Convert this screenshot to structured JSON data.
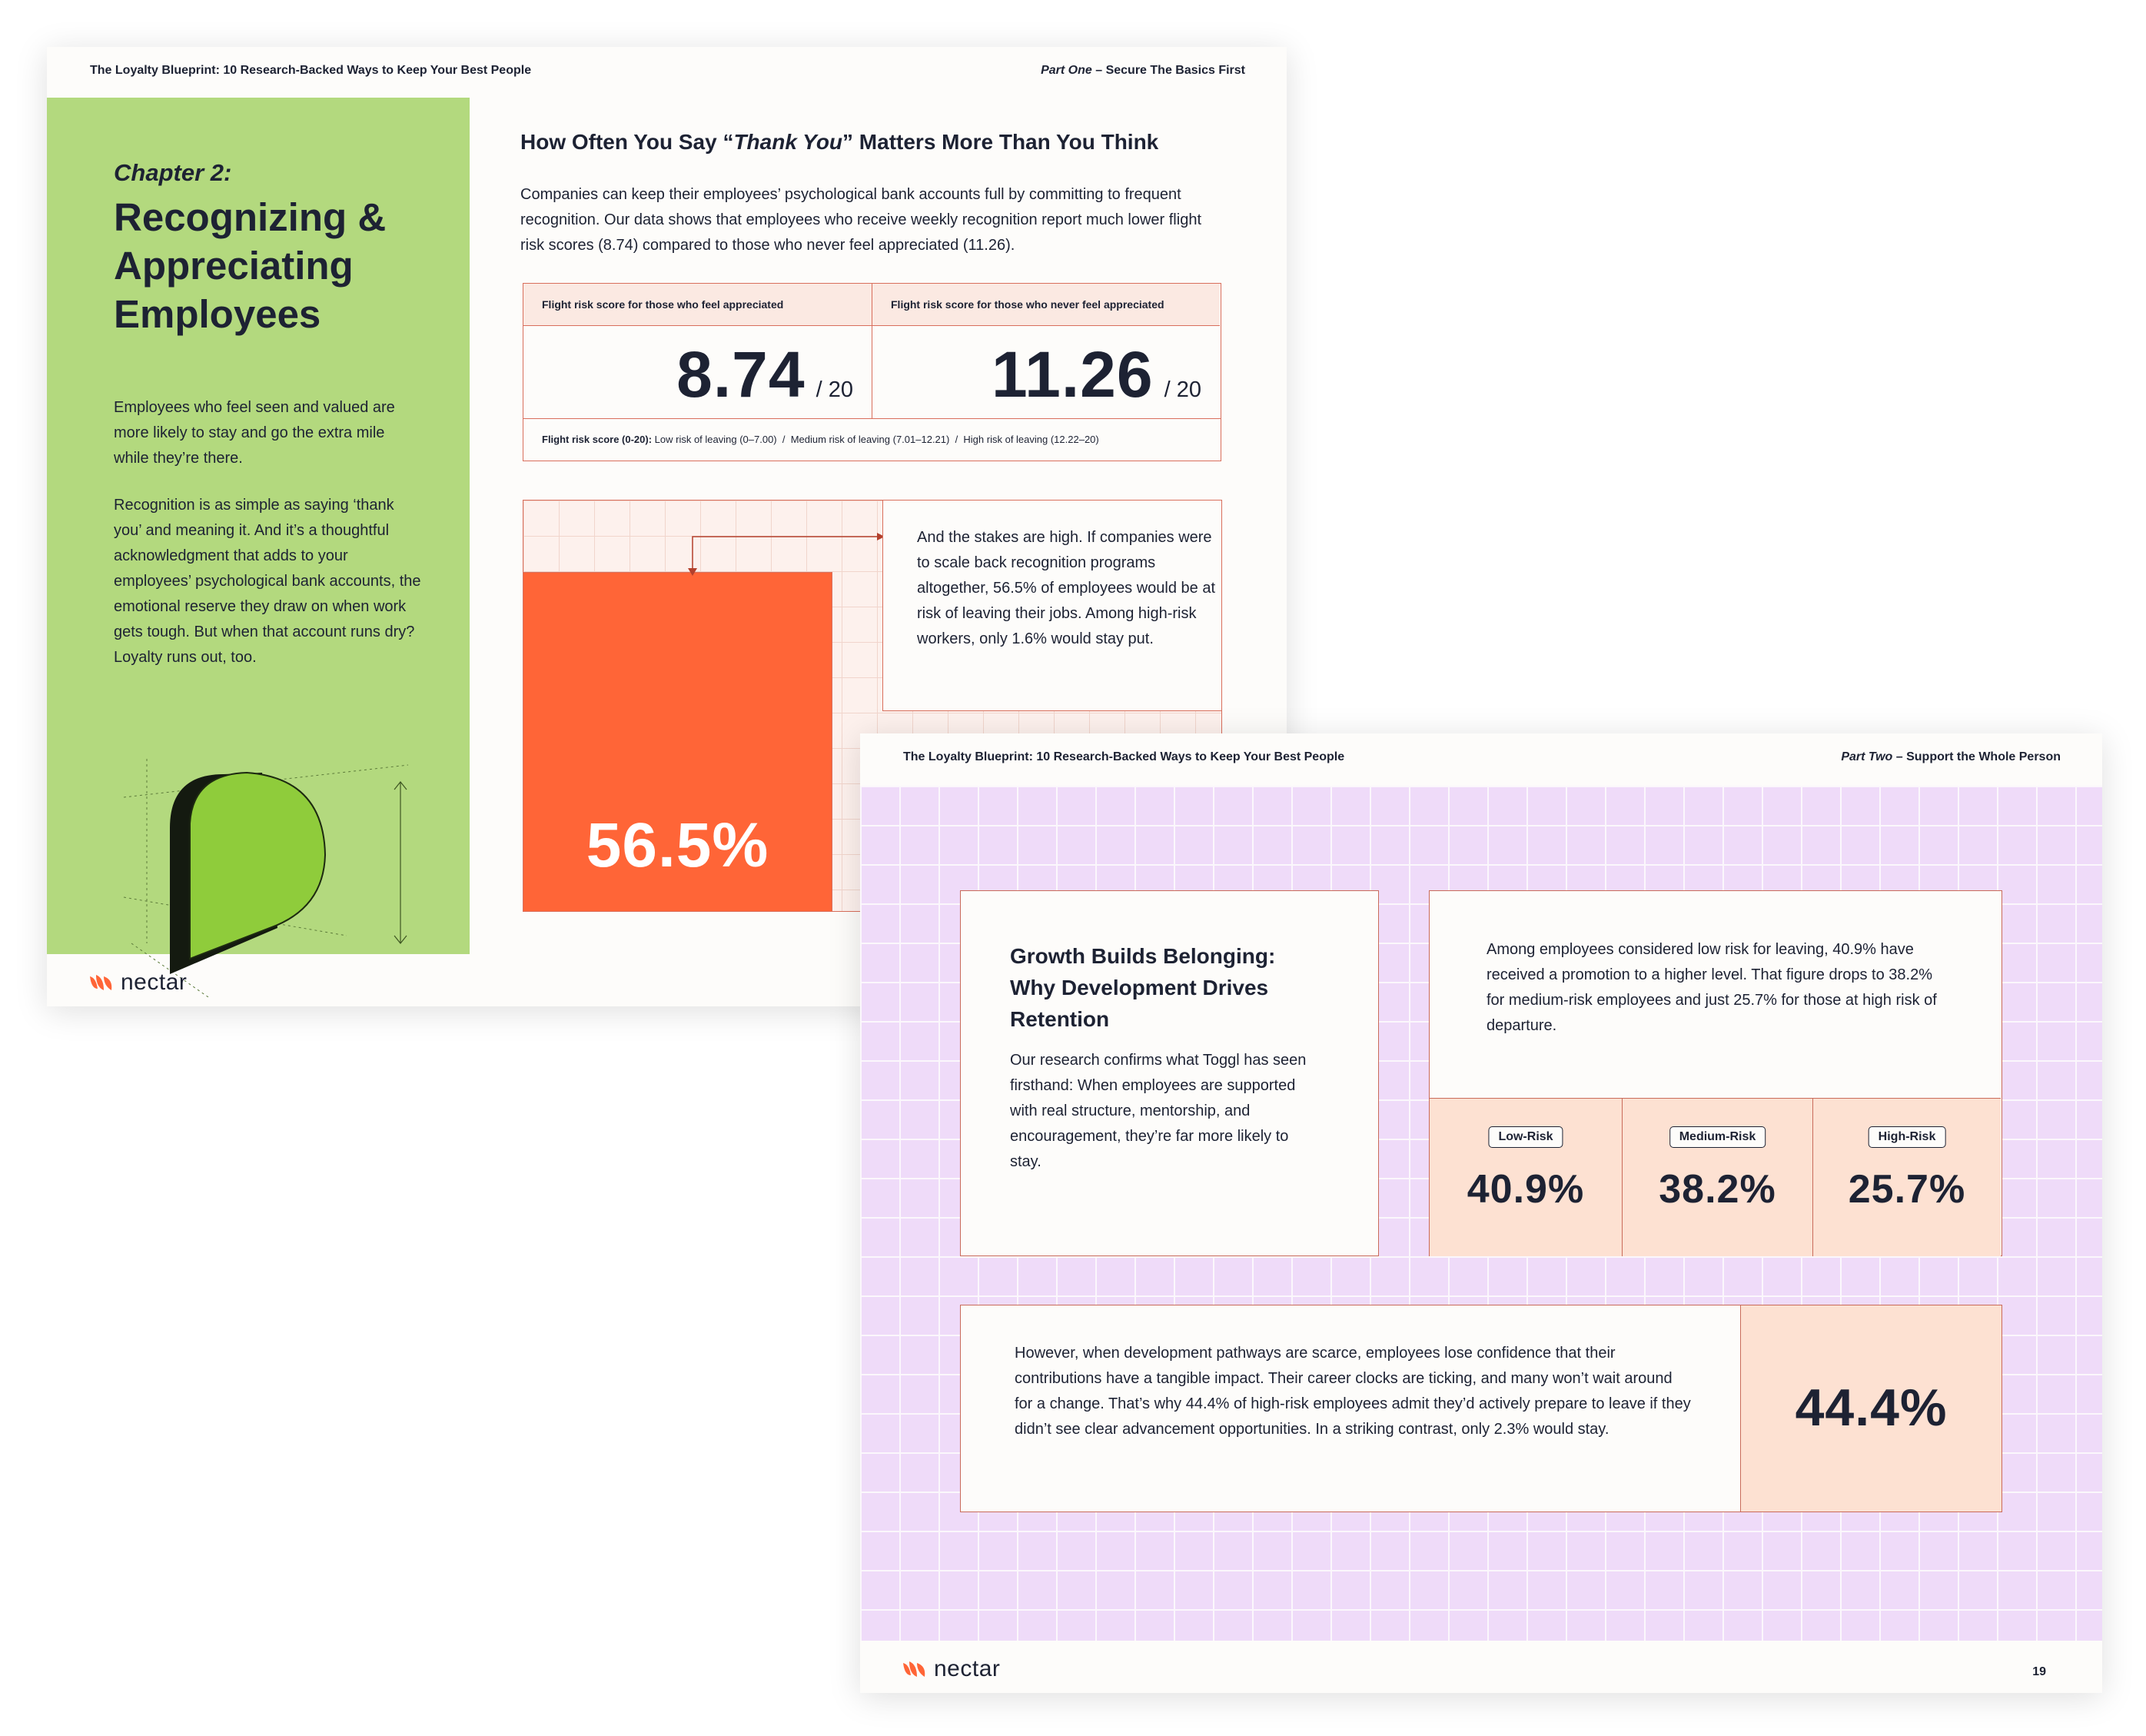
{
  "page_one": {
    "header_title": "The Loyalty Blueprint: 10 Research-Backed Ways to Keep Your Best People",
    "header_part": "Part One",
    "header_section": " – Secure The Basics First",
    "chapter_label": "Chapter 2:",
    "chapter_title": "Recognizing & Appreciating Employees",
    "sidebar_para_1": "Employees who feel seen and valued are more likely to stay and go the extra mile while they’re there.",
    "sidebar_para_2": "Recognition is as simple as saying ‘thank you’ and meaning it. And it’s a thoughtful acknowledgment that adds to your employees’ psychological bank accounts, the emotional reserve they draw on when work gets tough. But when that account runs dry? Loyalty runs out, too.",
    "heading_before": "How Often You Say “",
    "heading_italic": "Thank You",
    "heading_after": "” Matters More Than You Think",
    "intro": "Companies can keep their employees’ psychological bank accounts full by committing to frequent recognition. Our data shows that employees who receive weekly recognition report much lower flight risk scores (8.74) compared to those who never feel appreciated (11.26).",
    "stat_a_label": "Flight risk score for those who feel appreciated",
    "stat_a_value": "8.74",
    "stat_a_denominator": "/ 20",
    "stat_b_label": "Flight risk score for those who never feel appreciated",
    "stat_b_value": "11.26",
    "stat_b_denominator": "/ 20",
    "scale_label": "Flight risk score (0-20):",
    "scale_text": " Low risk of leaving (0–7.00)  /  Medium risk of leaving (7.01–12.21)  /  High risk of leaving (12.22–20)",
    "bar_value": "56.5%",
    "note": "And the stakes are high. If companies were to scale back recognition programs altogether, 56.5% of employees would be at risk of leaving their jobs. Among high-risk workers, only 1.6% would stay put.",
    "logo_text": "nectar"
  },
  "page_two": {
    "header_title": "The Loyalty Blueprint: 10 Research-Backed Ways to Keep Your Best People",
    "header_part": "Part Two",
    "header_section": " – Support the Whole Person",
    "card1_title": "Growth Builds Belonging: Why Development Drives Retention",
    "card1_body": "Our research confirms what Toggl has seen firsthand: When employees are supported with real structure, mentorship, and encouragement, they’re far more likely to stay.",
    "card2_body": "Among employees considered low risk for leaving, 40.9% have received a promotion to a higher level. That figure drops to 38.2% for medium-risk employees and just 25.7% for those at high risk of departure.",
    "risks": [
      {
        "label": "Low-Risk",
        "value": "40.9%"
      },
      {
        "label": "Medium-Risk",
        "value": "38.2%"
      },
      {
        "label": "High-Risk",
        "value": "25.7%"
      }
    ],
    "card3_body": "However, when development pathways are scarce, employees lose confidence that their contributions have a tangible impact. Their career clocks are ticking, and many won’t wait around for a change. That’s why 44.4% of high-risk employees admit they’d actively prepare to leave if they didn’t see clear advancement opportunities. In a striking contrast, only 2.3% would stay.",
    "card3_stat": "44.4%",
    "logo_text": "nectar",
    "page_number": "19"
  },
  "colors": {
    "navy": "#1d2233",
    "green_panel": "#b3d97e",
    "orange_bar": "#ff6537",
    "purple_bg": "#efdbf9",
    "peach": "#fde1d2",
    "border_red": "#d96f5c"
  }
}
